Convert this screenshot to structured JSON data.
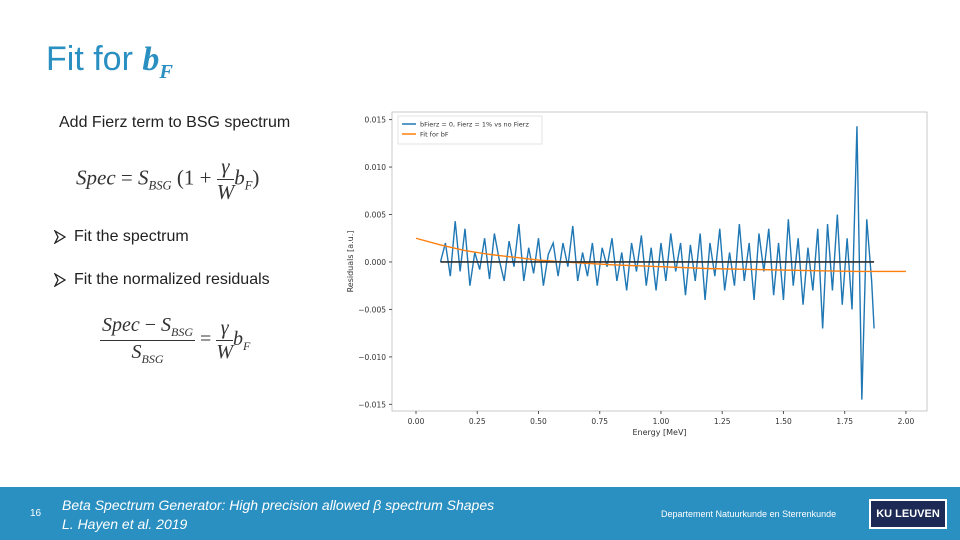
{
  "slide": {
    "title": {
      "text": "Fit for",
      "symbol": "b",
      "subscript": "F"
    },
    "intro": "Add Fierz term to BSG spectrum",
    "equation_1": {
      "lhs": "Spec",
      "eq": "=",
      "s": "S",
      "s_sub": "BSG",
      "open": "(1 +",
      "num": "γ",
      "den": "W",
      "b": "b",
      "b_sub": "F",
      "close": ")"
    },
    "bullets": [
      "Fit the spectrum",
      "Fit the normalized residuals"
    ],
    "equation_2": {
      "num_a": "Spec",
      "minus": "−",
      "num_s": "S",
      "num_sub": "BSG",
      "den_s": "S",
      "den_sub": "BSG",
      "eq": "=",
      "num": "γ",
      "den": "W",
      "b": "b",
      "b_sub": "F"
    },
    "page_number": "16",
    "reference": [
      "Beta Spectrum Generator: High precision allowed β spectrum Shapes",
      "L. Hayen et al. 2019"
    ],
    "department": "Departement Natuurkunde en Sterrenkunde",
    "logo": "KU LEUVEN"
  },
  "chart_data": {
    "type": "line",
    "xlabel": "Energy [MeV]",
    "ylabel": "Residuals [a.u.]",
    "xlim": [
      -0.098,
      2.086
    ],
    "ylim": [
      -0.0157,
      0.0158
    ],
    "xticks": [
      {
        "value": 0,
        "label": "0.00"
      },
      0.25,
      {
        "value": 0.5,
        "label": "0.50"
      },
      0.75,
      {
        "value": 1,
        "label": "1.00"
      },
      1.25,
      {
        "value": 1.5,
        "label": "1.50"
      },
      1.75,
      {
        "value": 2,
        "label": "2.00"
      }
    ],
    "yticks": [
      {
        "value": -0.015,
        "label": "−0.015"
      },
      {
        "value": -0.01,
        "label": "−0.010"
      },
      {
        "value": -0.005,
        "label": "−0.005"
      },
      {
        "value": 0,
        "label": "0.000"
      },
      0.005,
      {
        "value": 0.01,
        "label": "0.010"
      },
      0.015
    ],
    "legend": "upper left",
    "series": [
      {
        "name": "bFierz = 0, Fierz = 1% vs no Fierz",
        "color": "#1f77b4",
        "x": [
          0.1,
          0.12,
          0.14,
          0.16,
          0.18,
          0.2,
          0.22,
          0.24,
          0.26,
          0.28,
          0.3,
          0.32,
          0.34,
          0.36,
          0.38,
          0.4,
          0.42,
          0.44,
          0.46,
          0.48,
          0.5,
          0.52,
          0.54,
          0.56,
          0.58,
          0.6,
          0.62,
          0.64,
          0.66,
          0.68,
          0.7,
          0.72,
          0.74,
          0.76,
          0.78,
          0.8,
          0.82,
          0.84,
          0.86,
          0.88,
          0.9,
          0.92,
          0.94,
          0.96,
          0.98,
          1.0,
          1.02,
          1.04,
          1.06,
          1.08,
          1.1,
          1.12,
          1.14,
          1.16,
          1.18,
          1.2,
          1.22,
          1.24,
          1.26,
          1.28,
          1.3,
          1.32,
          1.34,
          1.36,
          1.38,
          1.4,
          1.42,
          1.44,
          1.46,
          1.48,
          1.5,
          1.52,
          1.54,
          1.56,
          1.58,
          1.6,
          1.62,
          1.64,
          1.66,
          1.68,
          1.7,
          1.72,
          1.74,
          1.76,
          1.78,
          1.8,
          1.82,
          1.84,
          1.86,
          1.87
        ],
        "values": [
          0,
          0.002,
          -0.0015,
          0.0043,
          -0.001,
          0.0035,
          -0.0025,
          0.001,
          -0.0008,
          0.0025,
          -0.0018,
          0.003,
          0.0002,
          -0.002,
          0.0022,
          -0.0005,
          0.004,
          -0.002,
          0.0015,
          -0.0012,
          0.0025,
          -0.0025,
          0.0008,
          0.002,
          -0.0015,
          0.002,
          -0.0005,
          0.0038,
          -0.002,
          0.001,
          -0.0015,
          0.002,
          -0.0025,
          0.0015,
          -0.0005,
          0.0025,
          -0.002,
          0.001,
          -0.003,
          0.002,
          -0.001,
          0.0028,
          -0.0025,
          0.0015,
          -0.003,
          0.002,
          -0.002,
          0.003,
          -0.001,
          0.002,
          -0.0035,
          0.0018,
          -0.002,
          0.003,
          -0.004,
          0.002,
          -0.0015,
          0.0035,
          -0.003,
          0.001,
          -0.0025,
          0.004,
          -0.002,
          0.002,
          -0.004,
          0.003,
          -0.001,
          0.0035,
          -0.0035,
          0.002,
          -0.004,
          0.0045,
          -0.0025,
          0.0025,
          -0.0045,
          0.0015,
          -0.003,
          0.0035,
          -0.007,
          0.004,
          -0.003,
          0.005,
          -0.0045,
          0.0025,
          -0.005,
          0.0143,
          -0.0145,
          0.0045,
          -0.002,
          -0.007
        ]
      },
      {
        "name": "Fit for bF",
        "color": "#ff7f0e",
        "x": [
          0,
          0.1,
          0.2,
          0.3,
          0.4,
          0.5,
          0.6,
          0.8,
          1.0,
          1.2,
          1.4,
          1.6,
          1.8,
          2.0
        ],
        "values": [
          0.0025,
          0.0018,
          0.0012,
          0.0008,
          0.0005,
          0.0002,
          0,
          -0.0003,
          -0.0005,
          -0.0007,
          -0.0008,
          -0.0009,
          -0.001,
          -0.001
        ]
      },
      {
        "color": "#2b2b2b",
        "x": [
          0.1,
          1.87
        ],
        "values": [
          0,
          0
        ]
      }
    ]
  }
}
